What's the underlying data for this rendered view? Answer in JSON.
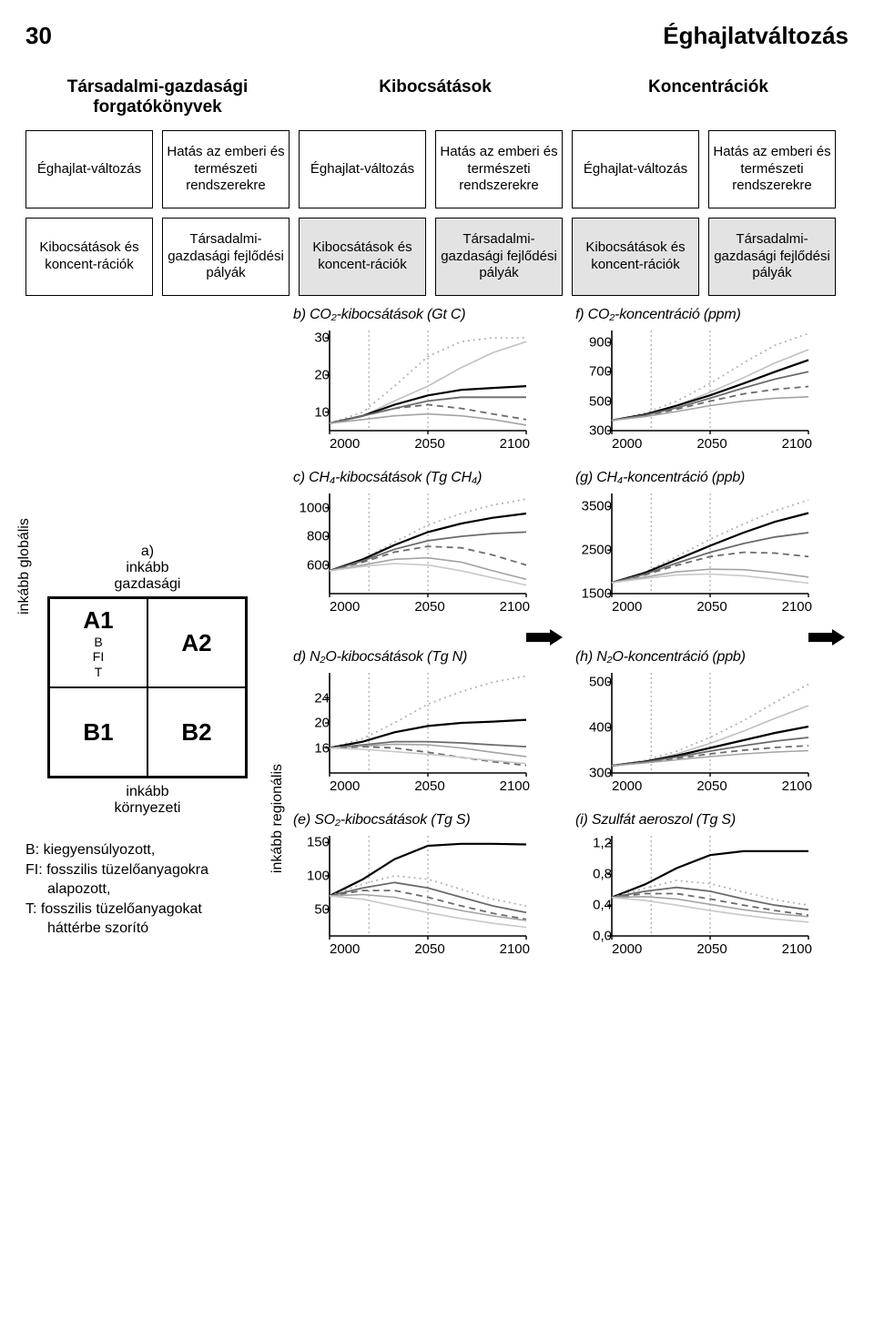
{
  "page": {
    "number": "30",
    "title": "Éghajlatváltozás"
  },
  "column_headers": {
    "soc": "Társadalmi-gazdasági forgatókönyvek",
    "em": "Kibocsátások",
    "con": "Koncentrációk"
  },
  "box_labels": {
    "climate": "Éghajlat-változás",
    "impact": "Hatás az emberi és természeti rendszerekre",
    "emcon": "Kibocsátások és koncent-rációk",
    "dev": "Társadalmi-gazdasági fejlődési pályák"
  },
  "sres": {
    "label_a": "a)",
    "axis_top1": "inkább",
    "axis_top2": "gazdasági",
    "axis_bot1": "inkább",
    "axis_bot2": "környezeti",
    "axis_left": "inkább globális",
    "axis_right": "inkább regionális",
    "A1": "A1",
    "A1_sub": "B\nFI\nT",
    "A2": "A2",
    "B1": "B1",
    "B2": "B2"
  },
  "legend": {
    "l1": "B: kiegyensúlyozott,",
    "l2": "FI: fosszilis tüzelőanyagokra",
    "l2b": "alapozott,",
    "l3": "T: fosszilis tüzelőanyagokat",
    "l3b": "háttérbe szorító"
  },
  "colors": {
    "axis": "#000000",
    "grid": "#9a9a9a",
    "s1": "#000000",
    "s2": "#6b6b6b",
    "s3": "#a4a4a4",
    "s4": "#c8c8c8"
  },
  "charts": {
    "b": {
      "title": "b) CO₂-kibocsátások (Gt C)",
      "yticks": [
        30,
        20,
        10
      ],
      "ylim": [
        5,
        32
      ],
      "xticks": [
        "2000",
        "2050",
        "2100"
      ],
      "series": [
        {
          "style": "dot",
          "color": "#b4b4b4",
          "w": 1.8,
          "y": [
            7,
            10,
            17,
            25,
            29,
            30,
            30
          ]
        },
        {
          "style": "solid",
          "color": "#c0c0c0",
          "w": 1.6,
          "y": [
            7,
            9,
            13,
            17,
            22,
            26,
            29
          ]
        },
        {
          "style": "solid",
          "color": "#000000",
          "w": 2.2,
          "y": [
            7,
            9,
            12,
            14.5,
            16,
            16.5,
            17
          ]
        },
        {
          "style": "solid",
          "color": "#6b6b6b",
          "w": 1.8,
          "y": [
            7,
            9,
            11,
            13,
            14,
            14,
            14
          ]
        },
        {
          "style": "dash",
          "color": "#6b6b6b",
          "w": 1.8,
          "y": [
            7,
            9,
            11,
            12,
            11,
            9.5,
            8
          ]
        },
        {
          "style": "solid",
          "color": "#a4a4a4",
          "w": 1.6,
          "y": [
            7,
            8,
            9,
            9.5,
            9,
            8,
            6.5
          ]
        }
      ]
    },
    "f": {
      "title": "f) CO₂-koncentráció (ppm)",
      "yticks": [
        900,
        700,
        500,
        300
      ],
      "ylim": [
        300,
        980
      ],
      "xticks": [
        "2000",
        "2050",
        "2100"
      ],
      "series": [
        {
          "style": "dot",
          "color": "#b4b4b4",
          "w": 1.8,
          "y": [
            370,
            420,
            500,
            620,
            760,
            880,
            960
          ]
        },
        {
          "style": "solid",
          "color": "#c0c0c0",
          "w": 1.6,
          "y": [
            370,
            410,
            470,
            560,
            660,
            760,
            850
          ]
        },
        {
          "style": "solid",
          "color": "#000000",
          "w": 2.2,
          "y": [
            370,
            410,
            470,
            540,
            620,
            700,
            780
          ]
        },
        {
          "style": "solid",
          "color": "#6b6b6b",
          "w": 1.8,
          "y": [
            370,
            405,
            455,
            520,
            590,
            650,
            700
          ]
        },
        {
          "style": "dash",
          "color": "#6b6b6b",
          "w": 1.8,
          "y": [
            370,
            400,
            445,
            500,
            550,
            580,
            600
          ]
        },
        {
          "style": "solid",
          "color": "#a4a4a4",
          "w": 1.6,
          "y": [
            370,
            395,
            430,
            470,
            500,
            520,
            530
          ]
        }
      ]
    },
    "c": {
      "title": "c) CH₄-kibocsátások (Tg CH₄)",
      "yticks": [
        1000,
        800,
        600
      ],
      "ylim": [
        400,
        1100
      ],
      "xticks": [
        "2000",
        "2050",
        "2100"
      ],
      "series": [
        {
          "style": "dot",
          "color": "#b4b4b4",
          "w": 1.8,
          "y": [
            560,
            640,
            760,
            880,
            960,
            1020,
            1060
          ]
        },
        {
          "style": "solid",
          "color": "#000000",
          "w": 2.2,
          "y": [
            560,
            640,
            740,
            830,
            890,
            930,
            960
          ]
        },
        {
          "style": "solid",
          "color": "#6b6b6b",
          "w": 1.8,
          "y": [
            560,
            630,
            710,
            770,
            800,
            820,
            830
          ]
        },
        {
          "style": "dash",
          "color": "#6b6b6b",
          "w": 1.8,
          "y": [
            560,
            620,
            690,
            730,
            720,
            670,
            600
          ]
        },
        {
          "style": "solid",
          "color": "#a4a4a4",
          "w": 1.6,
          "y": [
            560,
            600,
            640,
            650,
            620,
            560,
            500
          ]
        },
        {
          "style": "solid",
          "color": "#c8c8c8",
          "w": 1.6,
          "y": [
            560,
            590,
            610,
            600,
            560,
            510,
            460
          ]
        }
      ]
    },
    "g": {
      "title": "(g) CH₄-koncentráció (ppb)",
      "yticks": [
        3500,
        2500,
        1500
      ],
      "ylim": [
        1500,
        3800
      ],
      "xticks": [
        "2000",
        "2050",
        "2100"
      ],
      "series": [
        {
          "style": "dot",
          "color": "#b4b4b4",
          "w": 1.8,
          "y": [
            1750,
            2000,
            2350,
            2750,
            3100,
            3400,
            3650
          ]
        },
        {
          "style": "solid",
          "color": "#000000",
          "w": 2.2,
          "y": [
            1750,
            1980,
            2280,
            2600,
            2900,
            3150,
            3350
          ]
        },
        {
          "style": "solid",
          "color": "#6b6b6b",
          "w": 1.8,
          "y": [
            1750,
            1950,
            2200,
            2450,
            2650,
            2800,
            2900
          ]
        },
        {
          "style": "dash",
          "color": "#6b6b6b",
          "w": 1.8,
          "y": [
            1750,
            1930,
            2150,
            2350,
            2450,
            2430,
            2350
          ]
        },
        {
          "style": "solid",
          "color": "#a4a4a4",
          "w": 1.6,
          "y": [
            1750,
            1880,
            2000,
            2060,
            2050,
            1980,
            1880
          ]
        },
        {
          "style": "solid",
          "color": "#c8c8c8",
          "w": 1.6,
          "y": [
            1750,
            1850,
            1930,
            1950,
            1910,
            1830,
            1740
          ]
        }
      ]
    },
    "d": {
      "title": "d) N₂O-kibocsátások (Tg N)",
      "yticks": [
        24,
        20,
        16
      ],
      "ylim": [
        12,
        28
      ],
      "xticks": [
        "2000",
        "2050",
        "2100"
      ],
      "series": [
        {
          "style": "dot",
          "color": "#b4b4b4",
          "w": 1.8,
          "y": [
            16,
            17.5,
            20,
            23,
            25,
            26.5,
            27.5
          ]
        },
        {
          "style": "solid",
          "color": "#000000",
          "w": 2.2,
          "y": [
            16,
            17,
            18.5,
            19.5,
            20,
            20.2,
            20.5
          ]
        },
        {
          "style": "solid",
          "color": "#6b6b6b",
          "w": 1.8,
          "y": [
            16,
            16.5,
            17,
            17,
            16.8,
            16.5,
            16.2
          ]
        },
        {
          "style": "solid",
          "color": "#a4a4a4",
          "w": 1.6,
          "y": [
            16,
            16.3,
            16.6,
            16.5,
            16,
            15.3,
            14.6
          ]
        },
        {
          "style": "dash",
          "color": "#6b6b6b",
          "w": 1.8,
          "y": [
            16,
            16.2,
            16,
            15.3,
            14.5,
            13.8,
            13.2
          ]
        },
        {
          "style": "solid",
          "color": "#c8c8c8",
          "w": 1.6,
          "y": [
            16,
            15.8,
            15.4,
            15,
            14.5,
            14,
            13.5
          ]
        }
      ]
    },
    "h": {
      "title": "(h) N₂O-koncentráció (ppb)",
      "yticks": [
        500,
        400,
        300
      ],
      "ylim": [
        300,
        520
      ],
      "xticks": [
        "2000",
        "2050",
        "2100"
      ],
      "series": [
        {
          "style": "dot",
          "color": "#b4b4b4",
          "w": 1.8,
          "y": [
            316,
            328,
            348,
            378,
            415,
            455,
            495
          ]
        },
        {
          "style": "solid",
          "color": "#c0c0c0",
          "w": 1.6,
          "y": [
            316,
            326,
            342,
            365,
            392,
            420,
            448
          ]
        },
        {
          "style": "solid",
          "color": "#000000",
          "w": 2.2,
          "y": [
            316,
            325,
            338,
            355,
            372,
            388,
            402
          ]
        },
        {
          "style": "solid",
          "color": "#6b6b6b",
          "w": 1.8,
          "y": [
            316,
            324,
            335,
            348,
            360,
            370,
            378
          ]
        },
        {
          "style": "dash",
          "color": "#6b6b6b",
          "w": 1.8,
          "y": [
            316,
            323,
            332,
            342,
            350,
            356,
            360
          ]
        },
        {
          "style": "solid",
          "color": "#a4a4a4",
          "w": 1.6,
          "y": [
            316,
            322,
            329,
            336,
            342,
            346,
            349
          ]
        }
      ]
    },
    "e": {
      "title": "(e) SO₂-kibocsátások (Tg S)",
      "yticks": [
        150,
        100,
        50
      ],
      "ylim": [
        10,
        160
      ],
      "xticks": [
        "2000",
        "2050",
        "2100"
      ],
      "series": [
        {
          "style": "solid",
          "color": "#000000",
          "w": 2.2,
          "y": [
            70,
            95,
            125,
            145,
            148,
            148,
            147
          ]
        },
        {
          "style": "dot",
          "color": "#b4b4b4",
          "w": 1.8,
          "y": [
            70,
            88,
            100,
            95,
            80,
            65,
            55
          ]
        },
        {
          "style": "solid",
          "color": "#6b6b6b",
          "w": 1.8,
          "y": [
            70,
            82,
            90,
            82,
            68,
            55,
            45
          ]
        },
        {
          "style": "dash",
          "color": "#6b6b6b",
          "w": 1.8,
          "y": [
            70,
            78,
            78,
            68,
            55,
            44,
            35
          ]
        },
        {
          "style": "solid",
          "color": "#a4a4a4",
          "w": 1.6,
          "y": [
            70,
            72,
            68,
            58,
            48,
            40,
            33
          ]
        },
        {
          "style": "solid",
          "color": "#c8c8c8",
          "w": 1.6,
          "y": [
            70,
            65,
            55,
            45,
            36,
            29,
            23
          ]
        }
      ]
    },
    "i": {
      "title": "(i) Szulfát aeroszol (Tg S)",
      "yticks": [
        1.2,
        0.8,
        0.4,
        0.0
      ],
      "ylim": [
        0,
        1.3
      ],
      "xticks": [
        "2000",
        "2050",
        "2100"
      ],
      "yfmt": "fixed1",
      "series": [
        {
          "style": "solid",
          "color": "#000000",
          "w": 2.2,
          "y": [
            0.5,
            0.67,
            0.88,
            1.05,
            1.1,
            1.1,
            1.1
          ]
        },
        {
          "style": "dot",
          "color": "#b4b4b4",
          "w": 1.8,
          "y": [
            0.5,
            0.62,
            0.72,
            0.68,
            0.57,
            0.47,
            0.4
          ]
        },
        {
          "style": "solid",
          "color": "#6b6b6b",
          "w": 1.8,
          "y": [
            0.5,
            0.58,
            0.63,
            0.58,
            0.48,
            0.4,
            0.34
          ]
        },
        {
          "style": "dash",
          "color": "#6b6b6b",
          "w": 1.8,
          "y": [
            0.5,
            0.55,
            0.55,
            0.48,
            0.4,
            0.33,
            0.27
          ]
        },
        {
          "style": "solid",
          "color": "#a4a4a4",
          "w": 1.6,
          "y": [
            0.5,
            0.51,
            0.48,
            0.41,
            0.34,
            0.29,
            0.25
          ]
        },
        {
          "style": "solid",
          "color": "#c8c8c8",
          "w": 1.6,
          "y": [
            0.5,
            0.46,
            0.4,
            0.33,
            0.27,
            0.22,
            0.18
          ]
        }
      ]
    }
  }
}
